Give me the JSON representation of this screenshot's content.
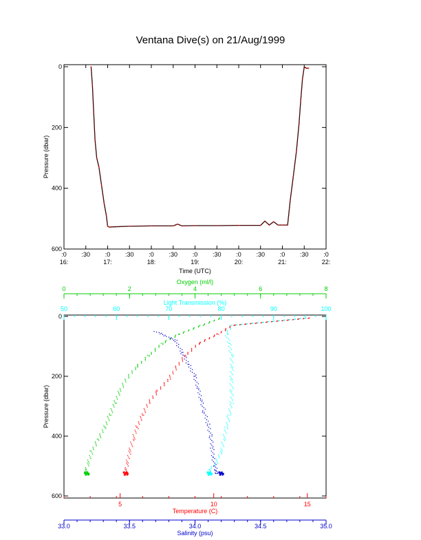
{
  "title": "Ventana Dive(s) on 21/Aug/1999",
  "colors": {
    "axis": "#000000",
    "pressure_trace": "#000000",
    "pressure_trace_overlay": "#ff0000",
    "oxygen": "#00cc00",
    "light_transmission": "#00ffff",
    "temperature": "#ff0000",
    "salinity": "#0000cc"
  },
  "chart_data": [
    {
      "type": "line",
      "xlabel": "Time (UTC)",
      "ylabel": "Pressure (dbar)",
      "x_unit": "hours UTC",
      "xlim": [
        16.0,
        22.0
      ],
      "ylim": [
        600,
        0
      ],
      "y_inverted": true,
      "y_ticks": [
        0,
        200,
        400,
        600
      ],
      "y_tick_labels": [
        "0",
        "200",
        "400",
        "600"
      ],
      "x_ticks": [
        16.0,
        16.5,
        17.0,
        17.5,
        18.0,
        18.5,
        19.0,
        19.5,
        20.0,
        20.5,
        21.0,
        21.5,
        22.0
      ],
      "x_tick_labels_top": [
        ":0",
        ":30",
        ":0",
        ":30",
        ":0",
        ":30",
        ":0",
        ":30",
        ":0",
        ":30",
        ":0",
        ":30",
        ":0"
      ],
      "x_tick_labels_bottom": [
        "16:",
        "",
        "17:",
        "",
        "18:",
        "",
        "19:",
        "",
        "20:",
        "",
        "21:",
        "",
        "22:"
      ],
      "series": [
        {
          "x": [
            16.62,
            16.65,
            16.68,
            16.71,
            16.75,
            16.8,
            16.86,
            16.92,
            16.97,
            17.0,
            17.04,
            17.1,
            17.5,
            18.0,
            18.5,
            18.6,
            18.7,
            19.0,
            19.5,
            20.0,
            20.5,
            20.6,
            20.7,
            20.8,
            20.9,
            21.0,
            21.12,
            21.18,
            21.25,
            21.32,
            21.38,
            21.42,
            21.46,
            21.5,
            21.55,
            21.6
          ],
          "y": [
            0,
            60,
            150,
            240,
            300,
            330,
            390,
            450,
            490,
            525,
            528,
            527,
            525,
            524,
            524,
            518,
            524,
            523,
            523,
            522,
            522,
            508,
            521,
            510,
            521,
            521,
            521,
            440,
            360,
            280,
            190,
            110,
            40,
            0,
            5,
            5
          ]
        }
      ]
    },
    {
      "type": "scatter",
      "ylabel": "Pressure (dbar)",
      "ylim": [
        600,
        0
      ],
      "y_inverted": true,
      "y_ticks": [
        0,
        200,
        400,
        600
      ],
      "y_tick_labels": [
        "0",
        "200",
        "400",
        "600"
      ],
      "axes": [
        {
          "key": "oxygen",
          "label": "Oxygen (ml/l)",
          "position": "top-outer",
          "range": [
            0,
            8
          ],
          "ticks": [
            0,
            2,
            4,
            6,
            8
          ],
          "tick_labels": [
            "0",
            "2",
            "4",
            "6",
            "8"
          ]
        },
        {
          "key": "light",
          "label": "Light Transmission (%)",
          "position": "top-inner",
          "range": [
            50,
            100
          ],
          "ticks": [
            50,
            60,
            70,
            80,
            90,
            100
          ],
          "tick_labels": [
            "50",
            "60",
            "70",
            "80",
            "90",
            "100"
          ]
        },
        {
          "key": "temperature",
          "label": "Temperature (C)",
          "position": "bottom-inner",
          "range": [
            2,
            16
          ],
          "ticks": [
            5,
            10,
            15
          ],
          "tick_labels": [
            "5",
            "10",
            "15"
          ]
        },
        {
          "key": "salinity",
          "label": "Salinity (psu)",
          "position": "bottom-outer",
          "range": [
            33.0,
            35.0
          ],
          "ticks": [
            33.0,
            33.5,
            34.0,
            34.5,
            35.0
          ],
          "tick_labels": [
            "33.0",
            "33.5",
            "34.0",
            "34.5",
            "35.0"
          ]
        }
      ],
      "series": [
        {
          "key": "oxygen",
          "x": [
            4.8,
            4.2,
            3.5,
            3.0,
            2.6,
            2.2,
            1.9,
            1.7,
            1.55,
            1.4,
            1.25,
            1.05,
            0.85,
            0.75,
            0.7,
            0.65,
            0.7
          ],
          "y": [
            5,
            30,
            60,
            90,
            130,
            170,
            210,
            250,
            290,
            330,
            370,
            410,
            450,
            490,
            510,
            525,
            525
          ]
        },
        {
          "key": "light",
          "x": [
            96.5,
            82.0,
            81.0,
            81.5,
            82.0,
            82.0,
            82.0,
            82.0,
            82.0,
            81.5,
            81.0,
            80.5,
            80.0,
            79.0,
            78.0,
            77.5,
            77.8
          ],
          "y": [
            5,
            30,
            60,
            90,
            130,
            170,
            210,
            250,
            290,
            330,
            370,
            410,
            450,
            490,
            510,
            520,
            525
          ]
        },
        {
          "key": "temperature",
          "x": [
            15.2,
            11.0,
            10.2,
            9.2,
            8.5,
            8.0,
            7.6,
            7.0,
            6.5,
            6.2,
            5.9,
            5.7,
            5.5,
            5.4,
            5.35,
            5.3
          ],
          "y": [
            5,
            30,
            60,
            90,
            130,
            170,
            210,
            250,
            290,
            330,
            370,
            410,
            450,
            490,
            510,
            525
          ]
        },
        {
          "key": "salinity",
          "x": [
            33.7,
            33.85,
            33.9,
            33.95,
            34.0,
            34.02,
            34.05,
            34.07,
            34.1,
            34.12,
            34.13,
            34.14,
            34.15,
            34.16,
            34.17,
            34.2
          ],
          "y": [
            50,
            80,
            120,
            160,
            200,
            240,
            280,
            320,
            360,
            400,
            440,
            470,
            500,
            515,
            525,
            525
          ]
        }
      ]
    }
  ]
}
